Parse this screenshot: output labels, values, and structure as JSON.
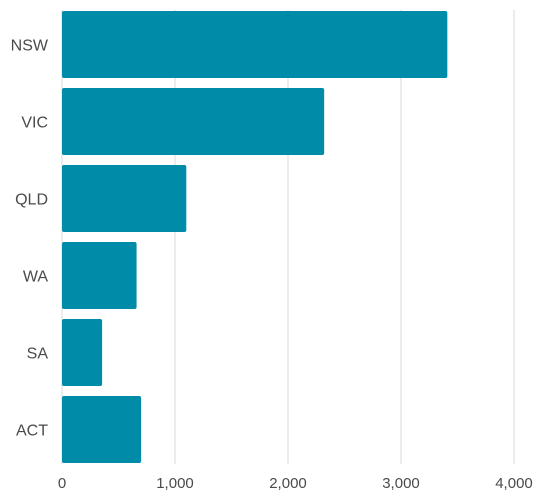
{
  "chart_data": {
    "type": "bar",
    "orientation": "horizontal",
    "categories": [
      "NSW",
      "VIC",
      "QLD",
      "WA",
      "SA",
      "ACT"
    ],
    "values": [
      3410,
      2320,
      1100,
      660,
      355,
      700
    ],
    "xlim": [
      0,
      4000
    ],
    "xticks": [
      0,
      1000,
      2000,
      3000,
      4000
    ],
    "xtick_labels": [
      "0",
      "1,000",
      "2,000",
      "3,000",
      "4,000"
    ],
    "grid": true,
    "bar_color": "#008ba8",
    "title": "",
    "xlabel": "",
    "ylabel": ""
  }
}
